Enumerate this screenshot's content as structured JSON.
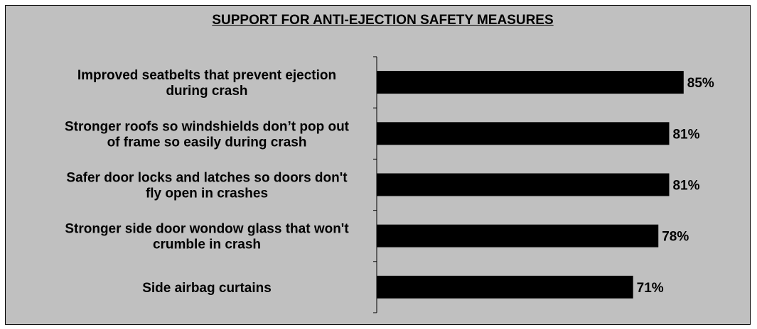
{
  "chart_data": {
    "type": "bar",
    "orientation": "horizontal",
    "title": "SUPPORT FOR ANTI-EJECTION SAFETY MEASURES",
    "categories": [
      [
        "Improved seatbelts that prevent ejection",
        "during crash"
      ],
      [
        "Stronger roofs so windshields don’t pop out",
        "of frame so easily during crash"
      ],
      [
        "Safer door locks and latches so doors don't",
        "fly open in crashes"
      ],
      [
        "Stronger side door wondow glass that won't",
        "crumble in crash"
      ],
      [
        "Side airbag curtains"
      ]
    ],
    "values": [
      85,
      81,
      81,
      78,
      71
    ],
    "data_labels": [
      "85%",
      "81%",
      "81%",
      "78%",
      "71%"
    ],
    "xlim": [
      0,
      100
    ],
    "grid": false,
    "legend": "none",
    "colors": {
      "bar": "#000000",
      "background": "#c0c0c0",
      "frame_border": "#000000"
    }
  }
}
